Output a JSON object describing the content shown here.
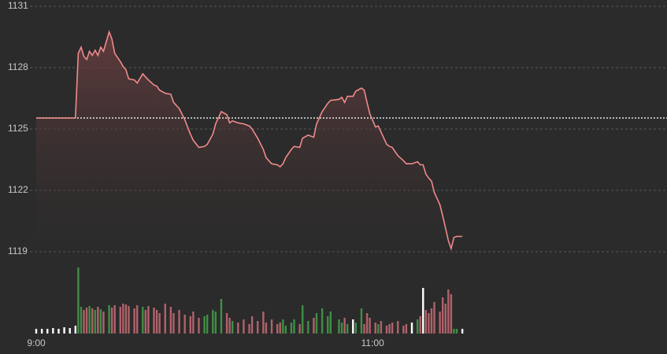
{
  "chart_data": {
    "type": "line",
    "x": [
      "9:00",
      "9:02",
      "9:04",
      "9:06",
      "9:08",
      "9:10",
      "9:12",
      "9:14",
      "9:15",
      "9:16",
      "9:17",
      "9:18",
      "9:19",
      "9:20",
      "9:21",
      "9:22",
      "9:23",
      "9:24",
      "9:26",
      "9:27",
      "9:28",
      "9:30",
      "9:31",
      "9:32",
      "9:33",
      "9:35",
      "9:36",
      "9:38",
      "9:39",
      "9:40",
      "9:42",
      "9:43",
      "9:44",
      "9:46",
      "9:48",
      "9:49",
      "9:51",
      "9:53",
      "9:55",
      "9:56",
      "9:58",
      "10:00",
      "10:01",
      "10:03",
      "10:04",
      "10:06",
      "10:08",
      "10:09",
      "10:10",
      "10:12",
      "10:14",
      "10:16",
      "10:17",
      "10:19",
      "10:21",
      "10:22",
      "10:24",
      "10:26",
      "10:27",
      "10:28",
      "10:29",
      "10:31",
      "10:32",
      "10:34",
      "10:35",
      "10:37",
      "10:39",
      "10:40",
      "10:42",
      "10:44",
      "10:45",
      "10:48",
      "10:49",
      "10:50",
      "10:51",
      "10:53",
      "10:54",
      "10:56",
      "10:57",
      "10:58",
      "10:59",
      "11:01",
      "11:02",
      "11:03",
      "11:05",
      "11:06",
      "11:07",
      "11:09",
      "11:11",
      "11:12",
      "11:14",
      "11:16",
      "11:17",
      "11:18",
      "11:19",
      "11:20",
      "11:21",
      "11:22",
      "11:24",
      "11:25",
      "11:26",
      "11:27",
      "11:28",
      "11:29",
      "11:30",
      "11:32"
    ],
    "values": [
      1125.54,
      1125.54,
      1125.54,
      1125.54,
      1125.54,
      1125.54,
      1125.54,
      1125.54,
      1128.7,
      1129.0,
      1128.55,
      1128.4,
      1128.8,
      1128.6,
      1128.85,
      1128.6,
      1129.0,
      1128.8,
      1129.75,
      1129.4,
      1128.7,
      1128.3,
      1128.05,
      1127.9,
      1127.45,
      1127.4,
      1127.25,
      1127.7,
      1127.55,
      1127.4,
      1127.15,
      1127.1,
      1126.9,
      1126.75,
      1126.7,
      1126.3,
      1126.0,
      1125.45,
      1124.75,
      1124.45,
      1124.1,
      1124.15,
      1124.25,
      1124.75,
      1125.25,
      1125.85,
      1125.7,
      1125.3,
      1125.4,
      1125.3,
      1125.25,
      1125.15,
      1125.0,
      1124.55,
      1124.0,
      1123.6,
      1123.3,
      1123.25,
      1123.15,
      1123.3,
      1123.6,
      1124.0,
      1124.15,
      1124.1,
      1124.55,
      1124.7,
      1124.6,
      1125.25,
      1125.85,
      1126.25,
      1126.4,
      1126.45,
      1126.55,
      1126.3,
      1126.6,
      1126.6,
      1126.85,
      1127.0,
      1126.9,
      1126.3,
      1125.75,
      1125.1,
      1125.15,
      1124.85,
      1124.25,
      1124.15,
      1124.1,
      1123.7,
      1123.45,
      1123.3,
      1123.3,
      1123.4,
      1123.25,
      1123.25,
      1122.8,
      1122.6,
      1122.45,
      1121.9,
      1121.3,
      1120.75,
      1120.15,
      1119.55,
      1119.15,
      1119.7,
      1119.75,
      1119.75
    ],
    "volume": [
      6,
      6,
      6,
      7,
      6,
      8,
      7,
      10,
      84,
      34,
      30,
      33,
      35,
      32,
      30,
      34,
      31,
      28,
      36,
      33,
      36,
      34,
      38,
      37,
      35,
      32,
      36,
      34,
      30,
      35,
      33,
      30,
      26,
      38,
      34,
      26,
      30,
      24,
      22,
      28,
      20,
      22,
      24,
      30,
      28,
      44,
      26,
      20,
      16,
      14,
      18,
      12,
      22,
      16,
      28,
      14,
      18,
      12,
      14,
      18,
      10,
      14,
      18,
      12,
      36,
      16,
      20,
      26,
      32,
      22,
      28,
      18,
      14,
      20,
      12,
      18,
      14,
      32,
      12,
      26,
      20,
      14,
      12,
      16,
      10,
      12,
      14,
      16,
      10,
      12,
      14,
      18,
      22,
      58,
      30,
      26,
      32,
      40,
      28,
      46,
      38,
      56,
      50,
      6,
      6,
      6
    ],
    "reference": 1125.54,
    "xlim": [
      "9:00",
      "12:45"
    ],
    "xticks": [
      "9:00",
      "11:00"
    ],
    "ylim": [
      1119,
      1131
    ],
    "yticks": [
      1119,
      1122,
      1125,
      1128,
      1131
    ],
    "volume_lim": [
      0,
      85
    ],
    "grid": true,
    "colors": {
      "line": "#f08a8a",
      "up": "#3f8f45",
      "down": "#b0626a",
      "flat": "#ffffff",
      "fill": "#6a3e40"
    }
  }
}
